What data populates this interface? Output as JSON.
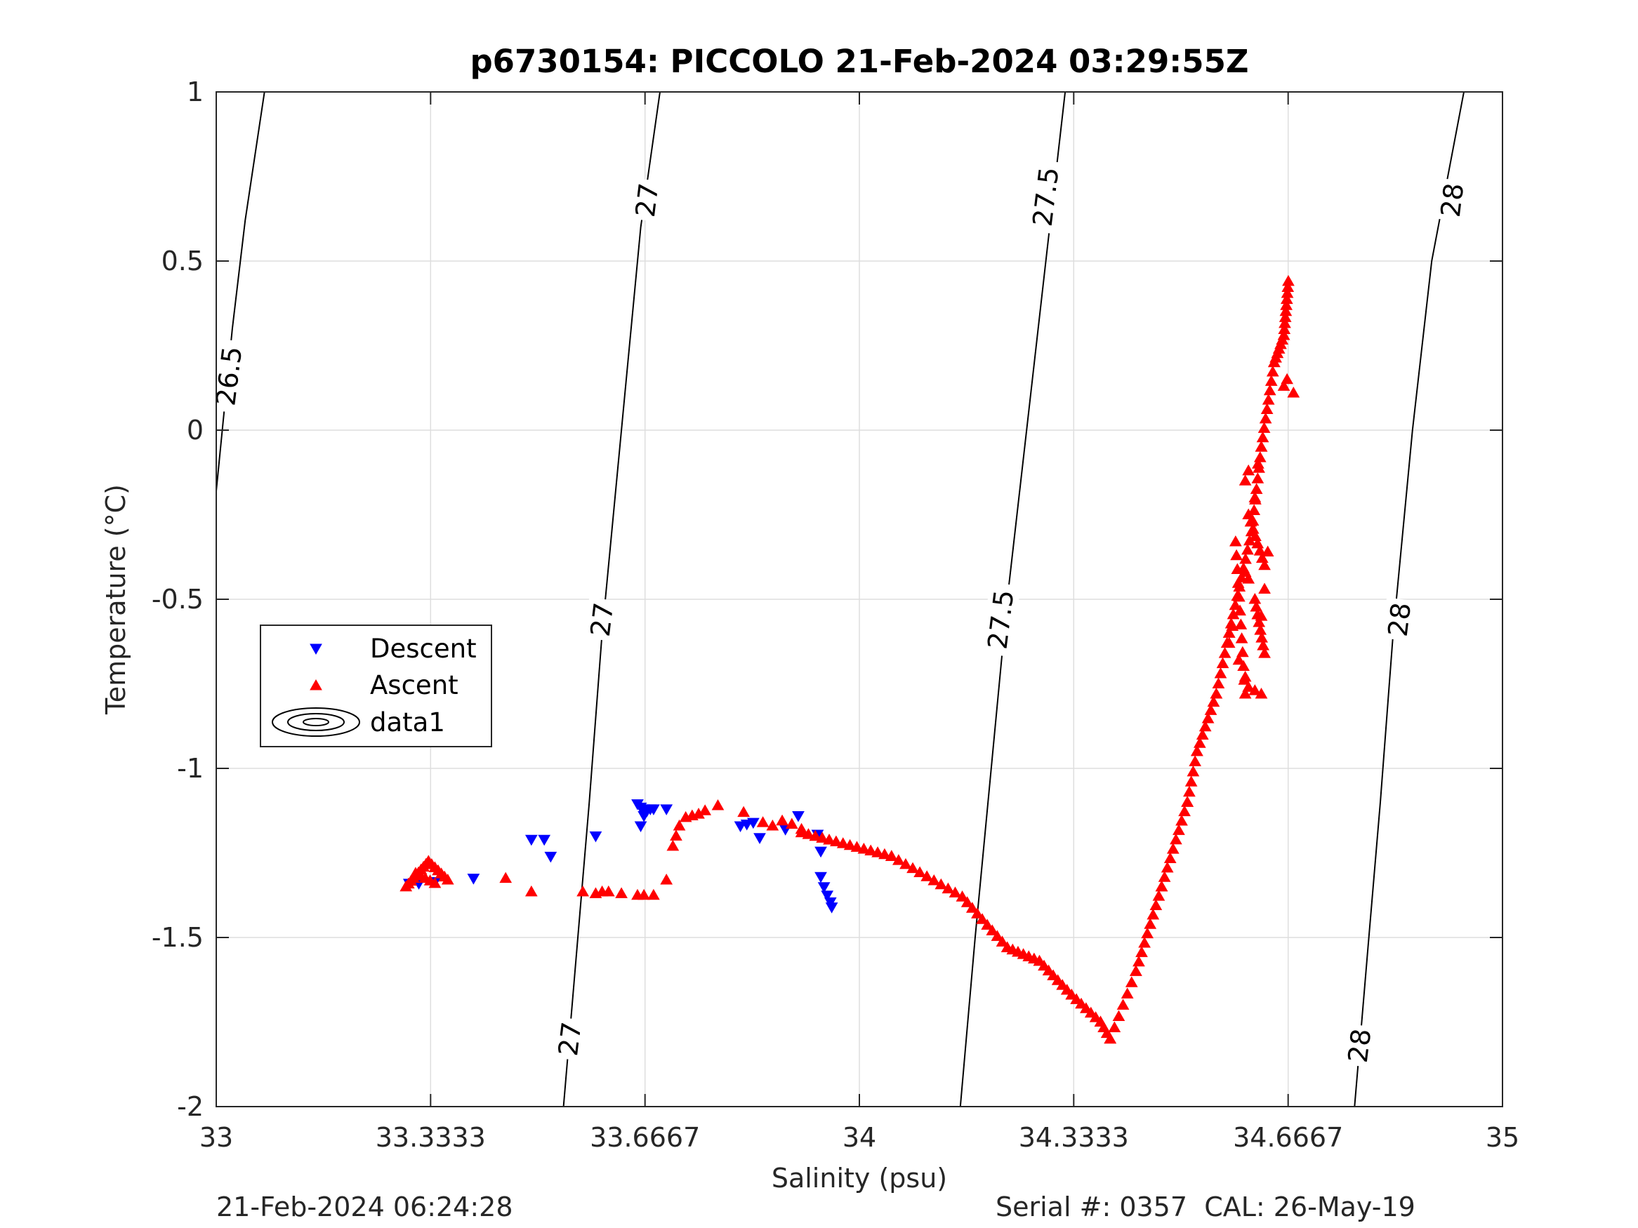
{
  "chart_data": {
    "type": "scatter",
    "title": "p6730154: PICCOLO 21-Feb-2024 03:29:55Z",
    "xlabel": "Salinity (psu)",
    "ylabel": "Temperature (°C)",
    "xlim": [
      33,
      35
    ],
    "ylim": [
      -2,
      1
    ],
    "xticks": [
      33,
      33.3333,
      33.6667,
      34,
      34.3333,
      34.6667,
      35
    ],
    "xtick_labels": [
      "33",
      "33.3333",
      "33.6667",
      "34",
      "34.3333",
      "34.6667",
      "35"
    ],
    "yticks": [
      -2,
      -1.5,
      -1,
      -0.5,
      0,
      0.5,
      1
    ],
    "ytick_labels": [
      "-2",
      "-1.5",
      "-1",
      "-0.5",
      "0",
      "0.5",
      "1"
    ],
    "grid": true,
    "legend_position": "middle-left",
    "legend": [
      {
        "label": "Descent",
        "marker": "triangle-down",
        "color": "#0000ff"
      },
      {
        "label": "Ascent",
        "marker": "triangle-up",
        "color": "#ff0000"
      },
      {
        "label": "data1",
        "marker": "contour",
        "color": "#000000"
      }
    ],
    "contours": [
      {
        "level": "26.5",
        "points": [
          [
            33.0,
            -0.18
          ],
          [
            33.025,
            0.3
          ],
          [
            33.045,
            0.62
          ],
          [
            33.075,
            1.0
          ]
        ]
      },
      {
        "level": "27",
        "points": [
          [
            33.54,
            -2.0
          ],
          [
            33.56,
            -1.55
          ],
          [
            33.58,
            -1.1
          ],
          [
            33.6,
            -0.6
          ],
          [
            33.63,
            0.0
          ],
          [
            33.66,
            0.6
          ],
          [
            33.69,
            1.0
          ]
        ]
      },
      {
        "level": "27.5",
        "points": [
          [
            34.157,
            -2.0
          ],
          [
            34.18,
            -1.5
          ],
          [
            34.205,
            -1.0
          ],
          [
            34.23,
            -0.5
          ],
          [
            34.26,
            0.0
          ],
          [
            34.29,
            0.5
          ],
          [
            34.32,
            1.0
          ]
        ]
      },
      {
        "level": "28",
        "points": [
          [
            34.77,
            -2.0
          ],
          [
            34.79,
            -1.55
          ],
          [
            34.81,
            -1.1
          ],
          [
            34.83,
            -0.6
          ],
          [
            34.86,
            0.0
          ],
          [
            34.89,
            0.5
          ],
          [
            34.94,
            1.0
          ]
        ]
      }
    ],
    "contour_labels": [
      {
        "text": "26.5",
        "x": 33.02,
        "y": 0.16
      },
      {
        "text": "27",
        "x": 33.55,
        "y": -1.8
      },
      {
        "text": "27",
        "x": 33.6,
        "y": -0.56
      },
      {
        "text": "27",
        "x": 33.67,
        "y": 0.68
      },
      {
        "text": "27.5",
        "x": 34.22,
        "y": -0.56
      },
      {
        "text": "27.5",
        "x": 34.29,
        "y": 0.69
      },
      {
        "text": "28",
        "x": 34.778,
        "y": -1.82
      },
      {
        "text": "28",
        "x": 34.84,
        "y": -0.56
      },
      {
        "text": "28",
        "x": 34.922,
        "y": 0.68
      }
    ],
    "series": [
      {
        "name": "Descent",
        "color": "#0000ff",
        "points": [
          [
            33.3,
            -1.34
          ],
          [
            33.315,
            -1.34
          ],
          [
            33.34,
            -1.335
          ],
          [
            33.4,
            -1.325
          ],
          [
            33.49,
            -1.21
          ],
          [
            33.51,
            -1.21
          ],
          [
            33.52,
            -1.26
          ],
          [
            33.59,
            -1.2
          ],
          [
            33.655,
            -1.105
          ],
          [
            33.66,
            -1.115
          ],
          [
            33.665,
            -1.12
          ],
          [
            33.67,
            -1.125
          ],
          [
            33.675,
            -1.12
          ],
          [
            33.68,
            -1.12
          ],
          [
            33.665,
            -1.14
          ],
          [
            33.66,
            -1.17
          ],
          [
            33.7,
            -1.12
          ],
          [
            33.815,
            -1.17
          ],
          [
            33.825,
            -1.165
          ],
          [
            33.835,
            -1.16
          ],
          [
            33.845,
            -1.205
          ],
          [
            33.885,
            -1.18
          ],
          [
            33.905,
            -1.14
          ],
          [
            33.935,
            -1.195
          ],
          [
            33.94,
            -1.245
          ],
          [
            33.94,
            -1.32
          ],
          [
            33.945,
            -1.35
          ],
          [
            33.95,
            -1.375
          ],
          [
            33.955,
            -1.395
          ],
          [
            33.957,
            -1.41
          ]
        ]
      },
      {
        "name": "Ascent",
        "color": "#ff0000",
        "generated": [
          {
            "from": [
              33.295,
              -1.35
            ],
            "to": [
              33.33,
              -1.275
            ],
            "n": 10
          },
          {
            "from": [
              33.33,
              -1.275
            ],
            "to": [
              33.36,
              -1.33
            ],
            "n": 7
          },
          {
            "from": [
              33.31,
              -1.31
            ],
            "to": [
              33.34,
              -1.34
            ],
            "n": 5
          },
          {
            "from": [
              33.91,
              -1.19
            ],
            "to": [
              34.05,
              -1.26
            ],
            "n": 14
          },
          {
            "from": [
              34.05,
              -1.26
            ],
            "to": [
              34.16,
              -1.38
            ],
            "n": 11
          },
          {
            "from": [
              34.16,
              -1.38
            ],
            "to": [
              34.23,
              -1.53
            ],
            "n": 10
          },
          {
            "from": [
              34.23,
              -1.53
            ],
            "to": [
              34.28,
              -1.57
            ],
            "n": 7
          },
          {
            "from": [
              34.28,
              -1.57
            ],
            "to": [
              34.33,
              -1.67
            ],
            "n": 8
          },
          {
            "from": [
              34.33,
              -1.67
            ],
            "to": [
              34.375,
              -1.75
            ],
            "n": 7
          },
          {
            "from": [
              34.375,
              -1.75
            ],
            "to": [
              34.39,
              -1.8
            ],
            "n": 4
          },
          {
            "from": [
              34.39,
              -1.8
            ],
            "to": [
              34.43,
              -1.6
            ],
            "n": 7
          },
          {
            "from": [
              34.43,
              -1.6
            ],
            "to": [
              34.47,
              -1.35
            ],
            "n": 10
          },
          {
            "from": [
              34.47,
              -1.35
            ],
            "to": [
              34.51,
              -1.1
            ],
            "n": 10
          },
          {
            "from": [
              34.51,
              -1.1
            ],
            "to": [
              34.525,
              -0.95
            ],
            "n": 6
          },
          {
            "from": [
              34.525,
              -0.95
            ],
            "to": [
              34.555,
              -0.78
            ],
            "n": 8
          },
          {
            "from": [
              34.555,
              -0.78
            ],
            "to": [
              34.575,
              -0.6
            ],
            "n": 7
          },
          {
            "from": [
              34.575,
              -0.6
            ],
            "to": [
              34.61,
              -0.3
            ],
            "n": 12
          },
          {
            "from": [
              34.61,
              -0.3
            ],
            "to": [
              34.625,
              -0.05
            ],
            "n": 9
          },
          {
            "from": [
              34.625,
              -0.05
            ],
            "to": [
              34.645,
              0.2
            ],
            "n": 10
          },
          {
            "from": [
              34.645,
              0.2
            ],
            "to": [
              34.66,
              0.28
            ],
            "n": 7
          },
          {
            "from": [
              34.66,
              0.28
            ],
            "to": [
              34.667,
              0.44
            ],
            "n": 10
          },
          {
            "from": [
              34.585,
              -0.33
            ],
            "to": [
              34.6,
              -0.78
            ],
            "n": 12
          },
          {
            "from": [
              34.605,
              -0.25
            ],
            "to": [
              34.63,
              -0.4
            ],
            "n": 8
          },
          {
            "from": [
              34.615,
              -0.5
            ],
            "to": [
              34.63,
              -0.66
            ],
            "n": 8
          }
        ],
        "points": [
          [
            33.45,
            -1.325
          ],
          [
            33.49,
            -1.365
          ],
          [
            33.57,
            -1.365
          ],
          [
            33.59,
            -1.37
          ],
          [
            33.6,
            -1.365
          ],
          [
            33.61,
            -1.365
          ],
          [
            33.63,
            -1.37
          ],
          [
            33.655,
            -1.375
          ],
          [
            33.665,
            -1.375
          ],
          [
            33.68,
            -1.375
          ],
          [
            33.7,
            -1.33
          ],
          [
            33.71,
            -1.23
          ],
          [
            33.715,
            -1.2
          ],
          [
            33.72,
            -1.17
          ],
          [
            33.73,
            -1.145
          ],
          [
            33.74,
            -1.14
          ],
          [
            33.75,
            -1.135
          ],
          [
            33.76,
            -1.125
          ],
          [
            33.78,
            -1.11
          ],
          [
            33.82,
            -1.13
          ],
          [
            33.85,
            -1.16
          ],
          [
            33.865,
            -1.17
          ],
          [
            33.88,
            -1.155
          ],
          [
            33.895,
            -1.165
          ],
          [
            33.91,
            -1.18
          ],
          [
            34.6,
            -0.15
          ],
          [
            34.605,
            -0.12
          ],
          [
            34.615,
            -0.2
          ],
          [
            34.62,
            -0.1
          ],
          [
            34.66,
            0.13
          ],
          [
            34.665,
            0.15
          ],
          [
            34.675,
            0.11
          ],
          [
            34.58,
            -0.58
          ],
          [
            34.575,
            -0.63
          ],
          [
            34.59,
            -0.68
          ],
          [
            34.6,
            -0.42
          ],
          [
            34.605,
            -0.44
          ],
          [
            34.625,
            -0.55
          ],
          [
            34.63,
            -0.47
          ],
          [
            34.635,
            -0.36
          ],
          [
            34.6,
            -0.73
          ],
          [
            34.605,
            -0.76
          ],
          [
            34.615,
            -0.77
          ],
          [
            34.625,
            -0.78
          ]
        ]
      }
    ]
  },
  "footer": {
    "left": "21-Feb-2024 06:24:28",
    "right": "Serial #: 0357  CAL: 26-May-19"
  }
}
